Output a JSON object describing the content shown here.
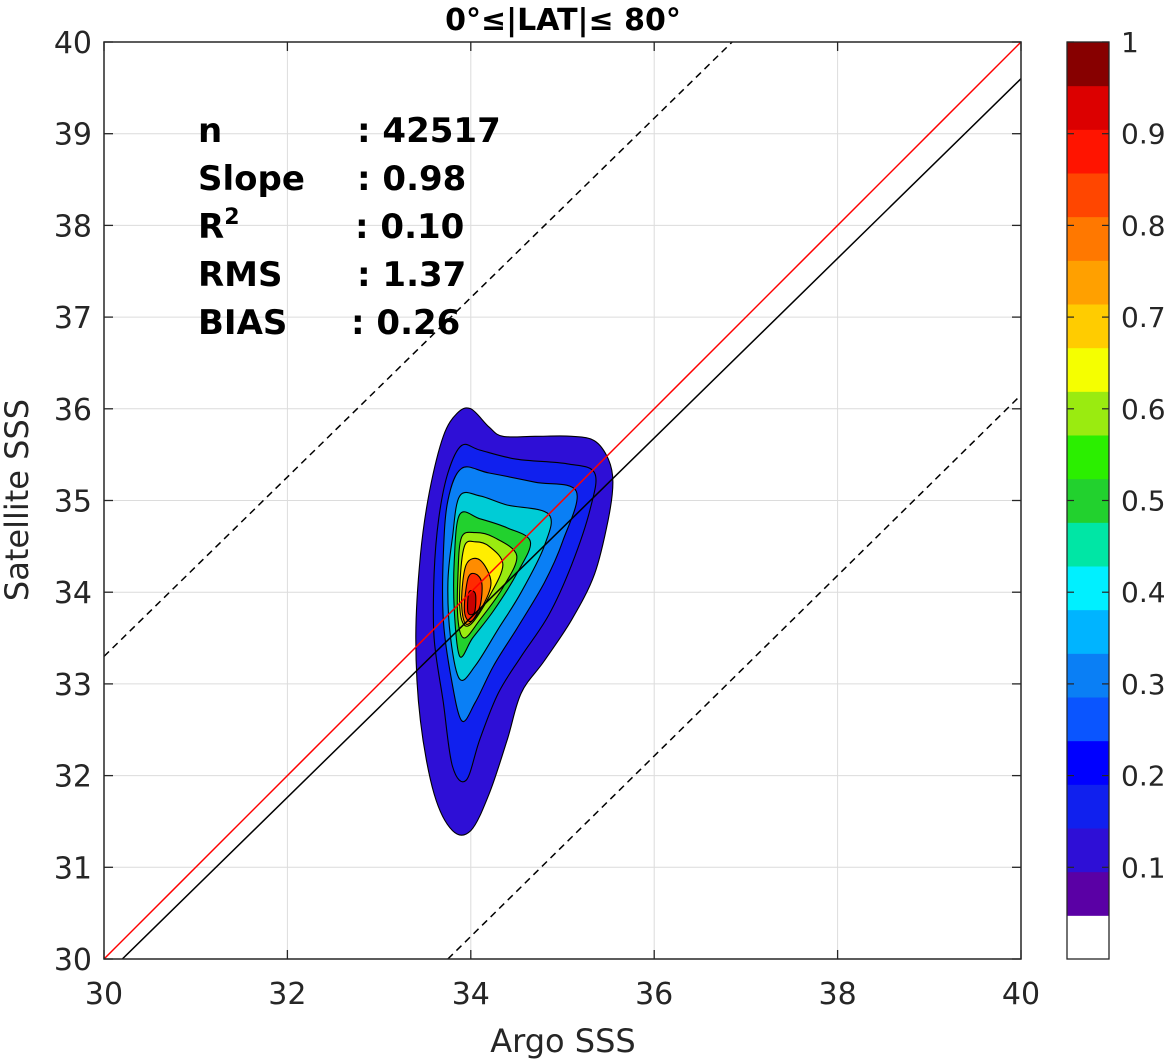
{
  "chart_data": {
    "type": "contour",
    "title": "0°≤|LAT|≤ 80°",
    "xlabel": "Argo SSS",
    "ylabel": "Satellite SSS",
    "xlim": [
      30,
      40
    ],
    "ylim": [
      30,
      40
    ],
    "xticks": [
      "30",
      "32",
      "34",
      "36",
      "38",
      "40"
    ],
    "yticks": [
      "30",
      "31",
      "32",
      "33",
      "34",
      "35",
      "36",
      "37",
      "38",
      "39",
      "40"
    ],
    "grid": true,
    "stats": [
      {
        "label": "n",
        "value": ": 42517"
      },
      {
        "label": "Slope",
        "value": ": 0.98"
      },
      {
        "label": "R",
        "sup": "2",
        "value": ": 0.10"
      },
      {
        "label": "RMS",
        "value": ": 1.37"
      },
      {
        "label": "BIAS",
        "value": ": 0.26"
      }
    ],
    "lines": [
      {
        "name": "one-to-one",
        "color": "#ff0000",
        "x": [
          30,
          40
        ],
        "y": [
          30,
          40
        ],
        "style": "solid"
      },
      {
        "name": "fit",
        "color": "#000000",
        "x": [
          30.2,
          40
        ],
        "y": [
          30,
          39.6
        ],
        "style": "solid"
      },
      {
        "name": "upper-bound",
        "color": "#000000",
        "x": [
          30,
          36.85
        ],
        "y": [
          33.3,
          40
        ],
        "style": "dashed"
      },
      {
        "name": "lower-bound",
        "color": "#000000",
        "x": [
          33.75,
          40
        ],
        "y": [
          30,
          36.15
        ],
        "style": "dashed"
      }
    ],
    "contour_levels": [
      0.1,
      0.2,
      0.3,
      0.4,
      0.5,
      0.6,
      0.7,
      0.8,
      0.9
    ],
    "contours": [
      {
        "level": 0.1,
        "color": "#2e0fd6",
        "points": [
          [
            34.0,
            36.0
          ],
          [
            33.85,
            35.95
          ],
          [
            33.7,
            35.7
          ],
          [
            33.55,
            35.1
          ],
          [
            33.45,
            34.4
          ],
          [
            33.4,
            33.5
          ],
          [
            33.45,
            32.6
          ],
          [
            33.6,
            31.8
          ],
          [
            33.8,
            31.4
          ],
          [
            34.0,
            31.4
          ],
          [
            34.2,
            31.8
          ],
          [
            34.4,
            32.4
          ],
          [
            34.55,
            32.9
          ],
          [
            34.8,
            33.25
          ],
          [
            35.1,
            33.7
          ],
          [
            35.35,
            34.2
          ],
          [
            35.5,
            34.8
          ],
          [
            35.55,
            35.2
          ],
          [
            35.5,
            35.45
          ],
          [
            35.35,
            35.65
          ],
          [
            35.1,
            35.7
          ],
          [
            34.7,
            35.7
          ],
          [
            34.35,
            35.7
          ],
          [
            34.2,
            35.8
          ]
        ]
      },
      {
        "level": 0.2,
        "color": "#1020ee",
        "points": [
          [
            33.9,
            35.6
          ],
          [
            33.75,
            35.3
          ],
          [
            33.65,
            34.8
          ],
          [
            33.6,
            34.2
          ],
          [
            33.6,
            33.5
          ],
          [
            33.7,
            32.8
          ],
          [
            33.8,
            32.1
          ],
          [
            33.95,
            31.95
          ],
          [
            34.1,
            32.4
          ],
          [
            34.3,
            32.9
          ],
          [
            34.55,
            33.3
          ],
          [
            34.85,
            33.75
          ],
          [
            35.1,
            34.3
          ],
          [
            35.3,
            34.9
          ],
          [
            35.35,
            35.3
          ],
          [
            35.05,
            35.4
          ],
          [
            34.5,
            35.45
          ],
          [
            34.1,
            35.55
          ]
        ]
      },
      {
        "level": 0.3,
        "color": "#0a7ff5",
        "points": [
          [
            33.9,
            35.35
          ],
          [
            33.75,
            35.0
          ],
          [
            33.7,
            34.4
          ],
          [
            33.7,
            33.7
          ],
          [
            33.78,
            33.1
          ],
          [
            33.9,
            32.6
          ],
          [
            34.05,
            32.8
          ],
          [
            34.25,
            33.2
          ],
          [
            34.5,
            33.6
          ],
          [
            34.8,
            34.1
          ],
          [
            35.0,
            34.55
          ],
          [
            35.15,
            35.1
          ],
          [
            34.7,
            35.2
          ],
          [
            34.2,
            35.3
          ]
        ]
      },
      {
        "level": 0.4,
        "color": "#00ccd6",
        "points": [
          [
            33.88,
            35.05
          ],
          [
            33.8,
            34.6
          ],
          [
            33.75,
            34.1
          ],
          [
            33.78,
            33.5
          ],
          [
            33.88,
            33.05
          ],
          [
            34.05,
            33.2
          ],
          [
            34.3,
            33.6
          ],
          [
            34.55,
            34.0
          ],
          [
            34.8,
            34.5
          ],
          [
            34.85,
            34.85
          ],
          [
            34.4,
            34.95
          ],
          [
            34.1,
            35.05
          ]
        ]
      },
      {
        "level": 0.5,
        "color": "#22d12e",
        "points": [
          [
            33.88,
            34.85
          ],
          [
            33.82,
            34.35
          ],
          [
            33.82,
            33.8
          ],
          [
            33.88,
            33.3
          ],
          [
            34.02,
            33.5
          ],
          [
            34.25,
            33.8
          ],
          [
            34.5,
            34.2
          ],
          [
            34.65,
            34.55
          ],
          [
            34.4,
            34.7
          ],
          [
            34.1,
            34.8
          ]
        ]
      },
      {
        "level": 0.6,
        "color": "#9aeb10",
        "points": [
          [
            33.9,
            34.6
          ],
          [
            33.86,
            34.2
          ],
          [
            33.86,
            33.7
          ],
          [
            33.93,
            33.5
          ],
          [
            34.1,
            33.7
          ],
          [
            34.35,
            34.05
          ],
          [
            34.5,
            34.4
          ],
          [
            34.25,
            34.6
          ],
          [
            34.05,
            34.65
          ]
        ]
      },
      {
        "level": 0.7,
        "color": "#ffee00",
        "points": [
          [
            33.93,
            34.5
          ],
          [
            33.88,
            34.05
          ],
          [
            33.9,
            33.7
          ],
          [
            34.0,
            33.65
          ],
          [
            34.2,
            33.95
          ],
          [
            34.35,
            34.3
          ],
          [
            34.2,
            34.5
          ],
          [
            34.05,
            34.55
          ]
        ]
      },
      {
        "level": 0.8,
        "color": "#ff8c00",
        "points": [
          [
            33.95,
            34.3
          ],
          [
            33.9,
            33.9
          ],
          [
            33.95,
            33.65
          ],
          [
            34.1,
            33.8
          ],
          [
            34.22,
            34.1
          ],
          [
            34.1,
            34.35
          ]
        ]
      },
      {
        "level": 0.9,
        "color": "#ff2a00",
        "points": [
          [
            33.97,
            34.15
          ],
          [
            33.93,
            33.8
          ],
          [
            34.0,
            33.68
          ],
          [
            34.1,
            33.85
          ],
          [
            34.12,
            34.1
          ],
          [
            34.05,
            34.2
          ]
        ]
      },
      {
        "level": 1.0,
        "color": "#c80000",
        "points": [
          [
            33.98,
            34.0
          ],
          [
            33.97,
            33.78
          ],
          [
            34.04,
            33.78
          ],
          [
            34.05,
            33.98
          ]
        ]
      }
    ],
    "colorbar": {
      "range": [
        0,
        1
      ],
      "ticks": [
        "0.1",
        "0.2",
        "0.3",
        "0.4",
        "0.5",
        "0.6",
        "0.7",
        "0.8",
        "0.9",
        "1"
      ],
      "colors": [
        "#ffffff",
        "#5a00a5",
        "#2e0fd6",
        "#1020ee",
        "#0000ff",
        "#0a55ff",
        "#0a7ff5",
        "#00b4ff",
        "#00f0ff",
        "#00e6a5",
        "#22d12e",
        "#2bef00",
        "#9aeb10",
        "#f5ff00",
        "#ffcc00",
        "#ffa000",
        "#ff7800",
        "#ff4600",
        "#ff1400",
        "#dc0000",
        "#870000"
      ]
    }
  }
}
